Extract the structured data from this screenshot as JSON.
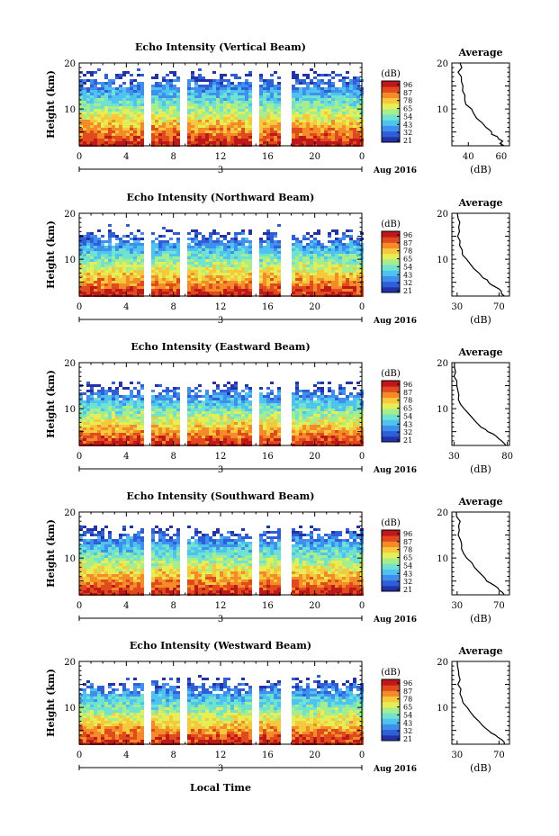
{
  "figure": {
    "xlabel": "Local Time",
    "date_label": "Aug 2016",
    "day_label": "3"
  },
  "colorbar": {
    "unit": "(dB)",
    "ticks": [
      "96",
      "87",
      "78",
      "65",
      "54",
      "43",
      "32",
      "21"
    ],
    "colors": [
      "#2233aa",
      "#2f5fd8",
      "#3f8fef",
      "#4fc3f0",
      "#6fe3cf",
      "#a6ee8c",
      "#e6ee55",
      "#f6c83c",
      "#f48a28",
      "#e04a1c",
      "#c0181a"
    ]
  },
  "chart_data": [
    {
      "type": "heatmap",
      "title": "Echo Intensity (Vertical Beam)",
      "ylabel": "Height (km)",
      "xlim": [
        0,
        24
      ],
      "ylim": [
        2,
        20
      ],
      "x_ticks": [
        "0",
        "4",
        "8",
        "12",
        "16",
        "20",
        "0"
      ],
      "y_ticks": [
        "20",
        "10"
      ],
      "data_gaps_hours": [
        5.8,
        8.8,
        15.0,
        17.6
      ],
      "upper_fill_km": 18.5,
      "profile": {
        "title": "Average",
        "xlabel": "(dB)",
        "x_ticks": [
          "40",
          "60"
        ],
        "xlim": [
          30,
          65
        ],
        "height_km": [
          2,
          2.5,
          3,
          3.5,
          4,
          4.5,
          5,
          5.5,
          6,
          7,
          8,
          9,
          10,
          11,
          12,
          13,
          14,
          15,
          16,
          17,
          18,
          19,
          20
        ],
        "db": [
          62,
          60,
          61,
          58,
          57,
          55,
          54,
          52,
          50,
          48,
          45,
          43,
          41,
          39,
          38,
          37,
          36,
          36,
          35,
          36,
          34,
          36,
          35
        ]
      }
    },
    {
      "type": "heatmap",
      "title": "Echo Intensity (Northward Beam)",
      "ylabel": "Height (km)",
      "xlim": [
        0,
        24
      ],
      "ylim": [
        2,
        20
      ],
      "x_ticks": [
        "0",
        "4",
        "8",
        "12",
        "16",
        "20",
        "0"
      ],
      "y_ticks": [
        "20",
        "10"
      ],
      "data_gaps_hours": [
        5.8,
        8.8,
        15.0,
        17.6
      ],
      "upper_fill_km": 17.0,
      "profile": {
        "title": "Average",
        "xlabel": "(dB)",
        "x_ticks": [
          "30",
          "70"
        ],
        "xlim": [
          25,
          80
        ],
        "height_km": [
          2,
          2.5,
          3,
          3.5,
          4,
          4.5,
          5,
          5.5,
          6,
          7,
          8,
          9,
          10,
          11,
          12,
          13,
          14,
          15,
          16,
          17,
          18,
          19,
          20
        ],
        "db": [
          76,
          73,
          72,
          70,
          66,
          63,
          60,
          58,
          55,
          50,
          46,
          42,
          39,
          36,
          34,
          33,
          32,
          31,
          33,
          31,
          32,
          30,
          30
        ]
      }
    },
    {
      "type": "heatmap",
      "title": "Echo Intensity (Eastward Beam)",
      "ylabel": "Height (km)",
      "xlim": [
        0,
        24
      ],
      "ylim": [
        2,
        20
      ],
      "x_ticks": [
        "0",
        "4",
        "8",
        "12",
        "16",
        "20",
        "0"
      ],
      "y_ticks": [
        "20",
        "10"
      ],
      "data_gaps_hours": [
        5.8,
        8.8,
        15.0,
        17.6
      ],
      "upper_fill_km": 16.0,
      "profile": {
        "title": "Average",
        "xlabel": "(dB)",
        "x_ticks": [
          "30",
          "80"
        ],
        "xlim": [
          28,
          82
        ],
        "height_km": [
          2,
          2.5,
          3,
          3.5,
          4,
          4.5,
          5,
          5.5,
          6,
          7,
          8,
          9,
          10,
          11,
          12,
          13,
          14,
          15,
          16,
          17,
          18,
          19,
          20
        ],
        "db": [
          79,
          77,
          75,
          72,
          69,
          66,
          62,
          59,
          56,
          51,
          47,
          43,
          40,
          37,
          35,
          34,
          33,
          32,
          32,
          31,
          31,
          30,
          30
        ]
      }
    },
    {
      "type": "heatmap",
      "title": "Echo Intensity (Southward Beam)",
      "ylabel": "Height (km)",
      "xlim": [
        0,
        24
      ],
      "ylim": [
        2,
        20
      ],
      "x_ticks": [
        "0",
        "4",
        "8",
        "12",
        "16",
        "20",
        "0"
      ],
      "y_ticks": [
        "20",
        "10"
      ],
      "data_gaps_hours": [
        5.8,
        8.8,
        15.0,
        17.6
      ],
      "upper_fill_km": 17.5,
      "profile": {
        "title": "Average",
        "xlabel": "(dB)",
        "x_ticks": [
          "30",
          "70"
        ],
        "xlim": [
          25,
          80
        ],
        "height_km": [
          2,
          2.5,
          3,
          3.5,
          4,
          4.5,
          5,
          5.5,
          6,
          7,
          8,
          9,
          10,
          11,
          12,
          13,
          14,
          15,
          16,
          17,
          18,
          19,
          20
        ],
        "db": [
          75,
          73,
          71,
          68,
          65,
          62,
          59,
          57,
          54,
          50,
          46,
          43,
          40,
          37,
          35,
          34,
          33,
          32,
          33,
          31,
          32,
          30,
          30
        ]
      }
    },
    {
      "type": "heatmap",
      "title": "Echo Intensity (Westward Beam)",
      "ylabel": "Height (km)",
      "xlim": [
        0,
        24
      ],
      "ylim": [
        2,
        20
      ],
      "x_ticks": [
        "0",
        "4",
        "8",
        "12",
        "16",
        "20",
        "0"
      ],
      "y_ticks": [
        "20",
        "10"
      ],
      "data_gaps_hours": [
        5.8,
        8.8,
        15.0,
        17.6
      ],
      "upper_fill_km": 17.0,
      "profile": {
        "title": "Average",
        "xlabel": "(dB)",
        "x_ticks": [
          "30",
          "70"
        ],
        "xlim": [
          25,
          80
        ],
        "height_km": [
          2,
          2.5,
          3,
          3.5,
          4,
          4.5,
          5,
          5.5,
          6,
          7,
          8,
          9,
          10,
          11,
          12,
          13,
          14,
          15,
          16,
          17,
          18,
          19,
          20
        ],
        "db": [
          76,
          74,
          72,
          69,
          66,
          63,
          60,
          57,
          54,
          50,
          46,
          42,
          39,
          36,
          34,
          33,
          33,
          31,
          32,
          31,
          32,
          30,
          30
        ]
      }
    }
  ]
}
